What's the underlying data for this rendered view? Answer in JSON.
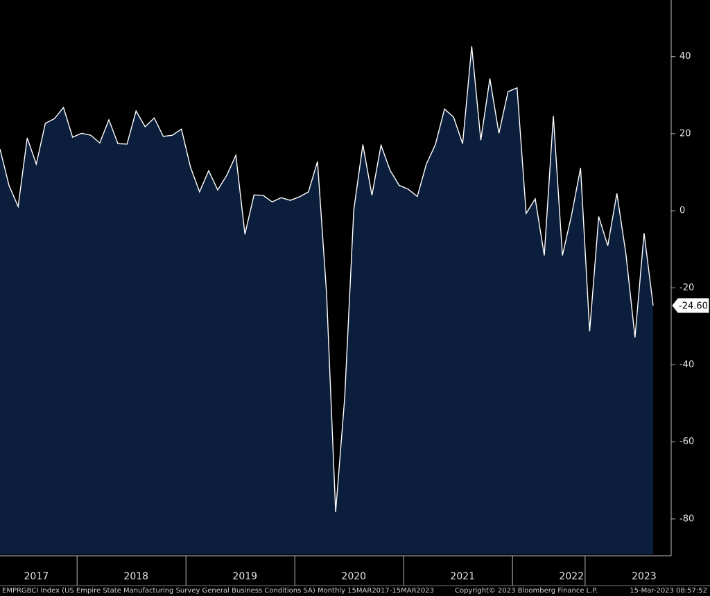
{
  "chart_data": {
    "type": "area",
    "title": "EMPRGBCI Index (US Empire State Manufacturing Survey General Business Conditions SA)  Monthly 15MAR2017-15MAR2023",
    "copyright": "Copyright© 2023 Bloomberg Finance L.P.",
    "timestamp": "15-Mar-2023 08:57:52",
    "categories": [
      null,
      null,
      null,
      null,
      "2017",
      null,
      null,
      null,
      null,
      null,
      null,
      null,
      null,
      null,
      null,
      "2018",
      null,
      null,
      null,
      null,
      null,
      null,
      null,
      null,
      null,
      null,
      null,
      "2019",
      null,
      null,
      null,
      null,
      null,
      null,
      null,
      null,
      null,
      null,
      null,
      "2020",
      null,
      null,
      null,
      null,
      null,
      null,
      null,
      null,
      null,
      null,
      null,
      "2021",
      null,
      null,
      null,
      null,
      null,
      null,
      null,
      null,
      null,
      null,
      null,
      "2022",
      null,
      null,
      null,
      null,
      null,
      null,
      null,
      "2023",
      null
    ],
    "values": [
      16.0,
      6.5,
      1.1,
      18.9,
      12.1,
      22.7,
      23.9,
      26.8,
      19.1,
      20.1,
      19.6,
      17.6,
      23.6,
      17.4,
      17.3,
      25.9,
      21.8,
      24.1,
      19.3,
      19.6,
      21.2,
      11.3,
      4.9,
      10.4,
      5.4,
      9.2,
      14.4,
      -6.1,
      4.1,
      4.0,
      2.3,
      3.4,
      2.7,
      3.6,
      4.9,
      12.8,
      -21.5,
      -78.2,
      -48.5,
      0.2,
      17.2,
      4.0,
      17.0,
      10.5,
      6.6,
      5.6,
      3.7,
      12.1,
      17.2,
      26.4,
      24.3,
      17.4,
      42.7,
      18.3,
      34.3,
      20.1,
      30.9,
      31.9,
      -0.7,
      3.1,
      -11.6,
      24.6,
      -11.6,
      -1.2,
      11.1,
      -31.3,
      -1.5,
      -9.1,
      4.5,
      -11.2,
      -32.9,
      -5.8,
      -24.6
    ],
    "last_value_label": "-24.60",
    "line_color": "#ffffff",
    "fill_color": "#0b1f3d",
    "ylim": [
      -89.2,
      54.7
    ],
    "yticks": [
      -80,
      -60,
      -40,
      -20,
      0,
      20,
      40
    ]
  }
}
